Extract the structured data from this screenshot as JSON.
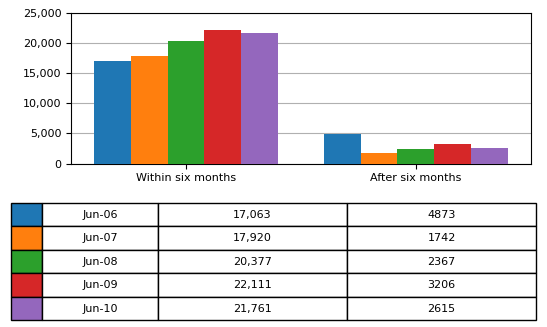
{
  "chart_data": {
    "type": "bar",
    "categories": [
      "Within six months",
      "After six months"
    ],
    "series": [
      {
        "name": "Jun-06",
        "values": [
          17063,
          4873
        ],
        "value_labels": [
          "17,063",
          "4873"
        ]
      },
      {
        "name": "Jun-07",
        "values": [
          17920,
          1742
        ],
        "value_labels": [
          "17,920",
          "1742"
        ]
      },
      {
        "name": "Jun-08",
        "values": [
          20377,
          2367
        ],
        "value_labels": [
          "20,377",
          "2367"
        ]
      },
      {
        "name": "Jun-09",
        "values": [
          22111,
          3206
        ],
        "value_labels": [
          "22,111",
          "3206"
        ]
      },
      {
        "name": "Jun-10",
        "values": [
          21761,
          2615
        ],
        "value_labels": [
          "21,761",
          "2615"
        ]
      }
    ],
    "ylim": [
      0,
      25000
    ],
    "yticks": [
      0,
      {
        "value": 5000,
        "label": "5,000"
      },
      {
        "value": 10000,
        "label": "10,000"
      },
      {
        "value": 15000,
        "label": "15,000"
      },
      {
        "value": 20000,
        "label": "20,000"
      },
      {
        "value": 25000,
        "label": "25,000"
      }
    ],
    "grid": true
  }
}
